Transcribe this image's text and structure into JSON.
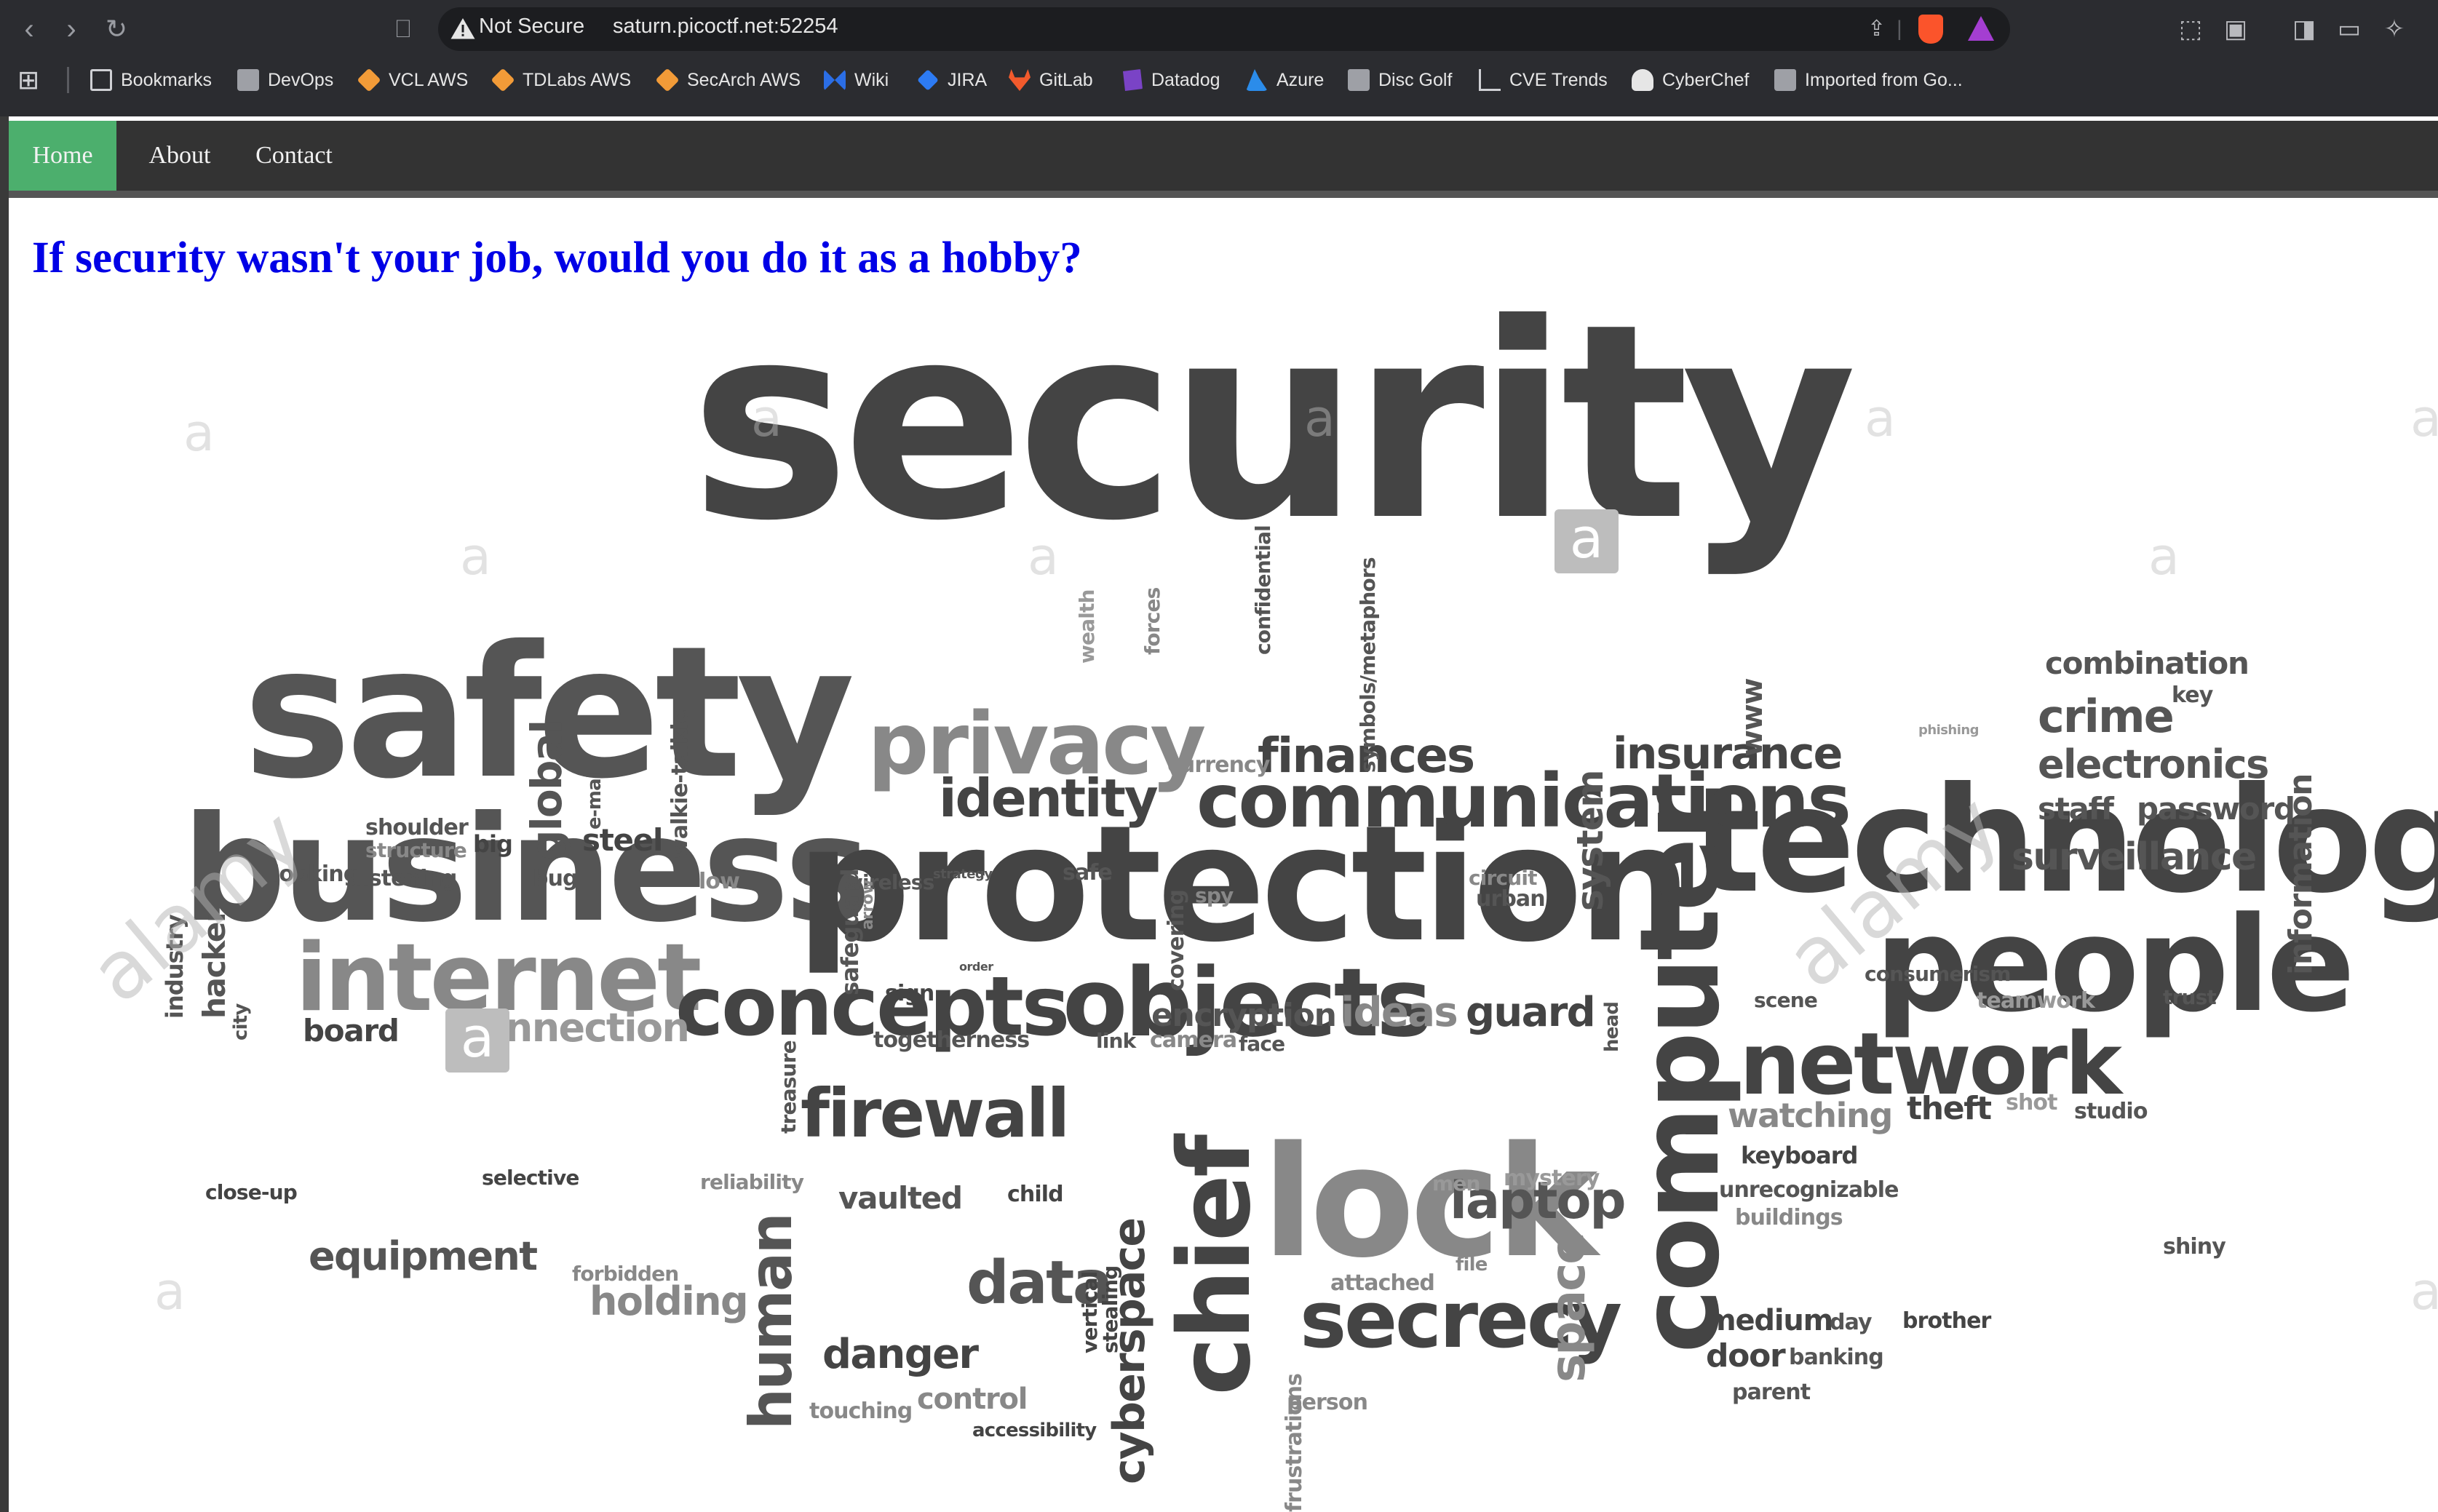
{
  "browser": {
    "security_label": "Not Secure",
    "url": "saturn.picoctf.net:52254",
    "bookmarks": [
      {
        "label": "Bookmarks",
        "icon": "bookmark-icon"
      },
      {
        "label": "DevOps",
        "icon": "folder-icon"
      },
      {
        "label": "VCL AWS",
        "icon": "aws-box-icon"
      },
      {
        "label": "TDLabs AWS",
        "icon": "aws-box-icon"
      },
      {
        "label": "SecArch AWS",
        "icon": "aws-box-icon"
      },
      {
        "label": "Wiki",
        "icon": "confluence-icon"
      },
      {
        "label": "JIRA",
        "icon": "jira-icon"
      },
      {
        "label": "GitLab",
        "icon": "gitlab-icon"
      },
      {
        "label": "Datadog",
        "icon": "datadog-icon"
      },
      {
        "label": "Azure",
        "icon": "azure-icon"
      },
      {
        "label": "Disc Golf",
        "icon": "folder-icon"
      },
      {
        "label": "CVE Trends",
        "icon": "chart-icon"
      },
      {
        "label": "CyberChef",
        "icon": "chef-hat-icon"
      },
      {
        "label": "Imported from Go...",
        "icon": "folder-icon"
      }
    ]
  },
  "nav": {
    "items": [
      {
        "label": "Home",
        "active": true
      },
      {
        "label": "About",
        "active": false
      },
      {
        "label": "Contact",
        "active": false
      }
    ]
  },
  "main": {
    "headline": "If security wasn't your job, would you do it as a hobby?"
  },
  "wordcloud": {
    "words": [
      "security",
      "safety",
      "business",
      "protection",
      "technology",
      "people",
      "network",
      "communications",
      "privacy",
      "identity",
      "internet",
      "concepts",
      "objects",
      "lock",
      "firewall",
      "computer",
      "secrecy",
      "chief",
      "data",
      "insurance",
      "finances",
      "crime",
      "electronics",
      "surveillance",
      "combination",
      "key",
      "staff",
      "password",
      "information",
      "global",
      "steel",
      "hacker",
      "industry",
      "city",
      "board",
      "connection",
      "equipment",
      "holding",
      "human",
      "danger",
      "control",
      "accessibility",
      "cyberspace",
      "laptop",
      "space",
      "guard",
      "ideas",
      "encryption",
      "watching",
      "theft",
      "studio",
      "shot",
      "keyboard",
      "unrecognizable",
      "buildings",
      "medium",
      "door",
      "day",
      "brother",
      "banking",
      "parent",
      "shiny",
      "system",
      "www",
      "currency",
      "symbols/metaphors",
      "confidential",
      "forces",
      "wealth",
      "shoulder",
      "structure",
      "big",
      "looking",
      "listening",
      "bug",
      "e-mail",
      "walkie-talkie",
      "low",
      "wireless",
      "safe",
      "spy",
      "covering",
      "safeguard",
      "sign",
      "togetherness",
      "link",
      "camera",
      "face",
      "vaulted",
      "child",
      "reliability",
      "selective",
      "close-up",
      "forbidden",
      "touching",
      "vertical",
      "stealing",
      "person",
      "attached",
      "file",
      "mystery",
      "men",
      "teamwork",
      "consumerism",
      "trust",
      "scene",
      "circuit",
      "urban",
      "head",
      "treasure",
      "arrow",
      "order",
      "phishing",
      "strategy",
      "frustrations"
    ]
  },
  "watermark": {
    "text": "alamy",
    "letter": "a"
  }
}
